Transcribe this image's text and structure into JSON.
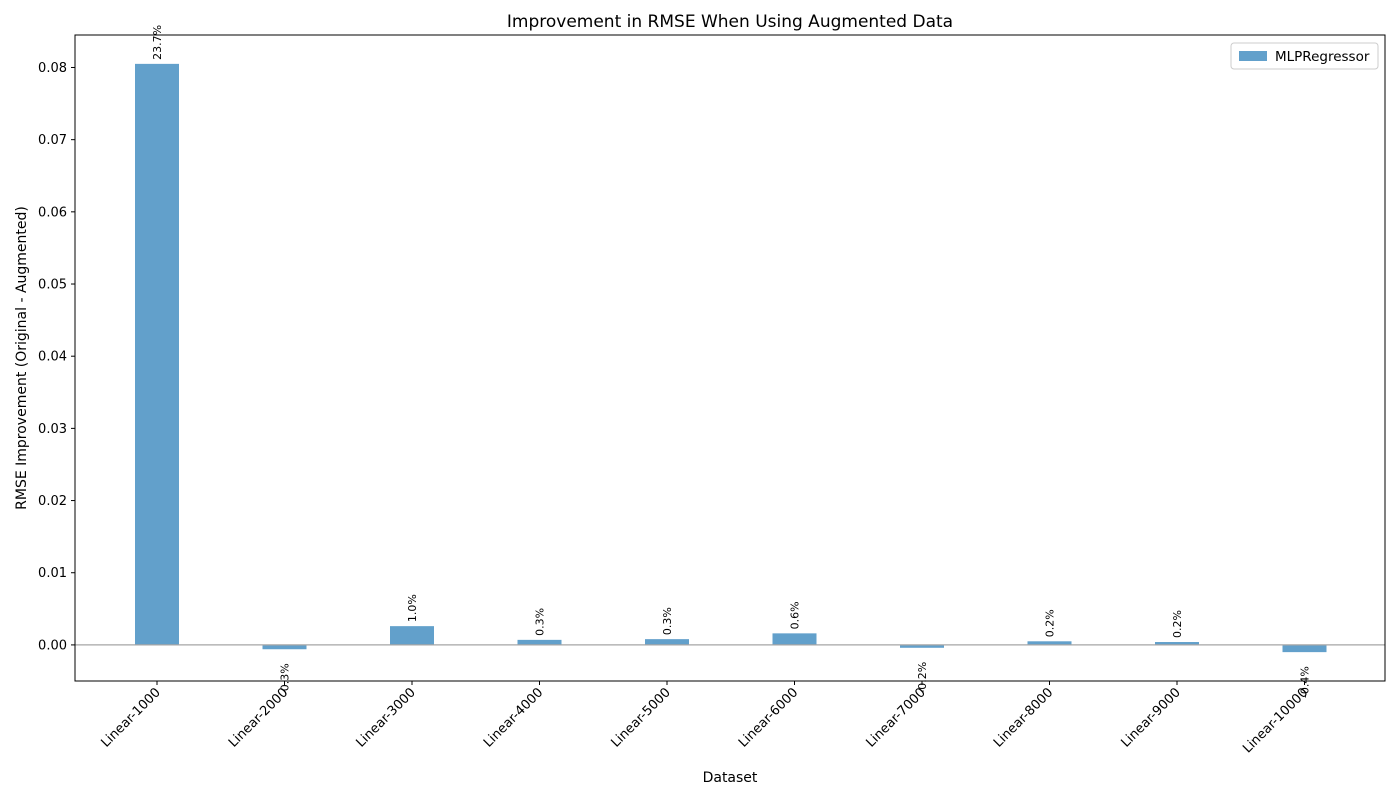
{
  "chart_data": {
    "type": "bar",
    "title": "Improvement in RMSE When Using Augmented Data",
    "xlabel": "Dataset",
    "ylabel": "RMSE Improvement (Original - Augmented)",
    "categories": [
      "Linear-1000",
      "Linear-2000",
      "Linear-3000",
      "Linear-4000",
      "Linear-5000",
      "Linear-6000",
      "Linear-7000",
      "Linear-8000",
      "Linear-9000",
      "Linear-10000"
    ],
    "series": [
      {
        "name": "MLPRegressor",
        "values": [
          0.0805,
          -0.0006,
          0.0026,
          0.0007,
          0.0008,
          0.0016,
          -0.0004,
          0.0005,
          0.0004,
          -0.001
        ],
        "labels": [
          "23.7%",
          "-0.3%",
          "1.0%",
          "0.3%",
          "0.3%",
          "0.6%",
          "-0.2%",
          "0.2%",
          "0.2%",
          "-0.4%"
        ]
      }
    ],
    "yticks": [
      "0.00",
      "0.01",
      "0.02",
      "0.03",
      "0.04",
      "0.05",
      "0.06",
      "0.07",
      "0.08"
    ],
    "ylim": [
      -0.005,
      0.0845
    ],
    "legend_position": "top-right",
    "grid": false,
    "zero_line": true,
    "colors": {
      "bar": "#62a0cb",
      "zero_line": "#a6a6a6",
      "axes": "#000000"
    }
  }
}
